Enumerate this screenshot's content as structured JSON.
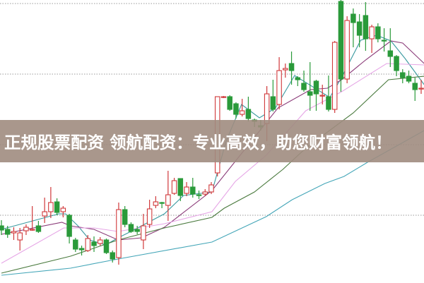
{
  "banner": {
    "text": "正规股票配资 领航配资：专业高效，助您财富领航！"
  },
  "chart_data": {
    "type": "candlestick",
    "title": "",
    "xlabel": "",
    "ylabel": "",
    "ylim": [
      10,
      50
    ],
    "grid": {
      "horizontal": true,
      "style": "dotted",
      "levels": [
        49.5,
        39.5,
        29.5,
        19.5
      ]
    },
    "colors": {
      "up": "#d0383a",
      "down": "#2a9a3a",
      "grid": "#999999",
      "banner": "#a08c80"
    },
    "candles_ohlc": [
      [
        18.0,
        18.8,
        16.7,
        17.4
      ],
      [
        17.5,
        18.0,
        16.3,
        16.8
      ],
      [
        17.0,
        17.8,
        16.0,
        17.2
      ],
      [
        16.0,
        17.7,
        14.5,
        17.0
      ],
      [
        17.3,
        18.2,
        16.7,
        17.8
      ],
      [
        17.4,
        20.8,
        17.3,
        17.5
      ],
      [
        18.0,
        18.7,
        17.0,
        17.2
      ],
      [
        19.4,
        22.0,
        18.4,
        20.0
      ],
      [
        20.0,
        23.5,
        19.1,
        21.3
      ],
      [
        21.4,
        21.9,
        19.5,
        19.9
      ],
      [
        20.0,
        20.8,
        19.2,
        20.5
      ],
      [
        19.5,
        19.7,
        15.5,
        16.5
      ],
      [
        16.0,
        16.3,
        14.3,
        14.7
      ],
      [
        14.8,
        15.2,
        13.8,
        14.6
      ],
      [
        14.5,
        16.7,
        14.3,
        16.2
      ],
      [
        15.7,
        16.5,
        14.3,
        15.2
      ],
      [
        15.5,
        16.4,
        15.2,
        16.0
      ],
      [
        16.0,
        16.2,
        14.0,
        14.2
      ],
      [
        14.2,
        14.5,
        12.8,
        13.3
      ],
      [
        13.5,
        21.3,
        12.5,
        20.3
      ],
      [
        20.3,
        20.8,
        17.8,
        18.2
      ],
      [
        18.2,
        18.5,
        17.0,
        17.2
      ],
      [
        17.5,
        18.0,
        16.8,
        17.2
      ],
      [
        16.0,
        19.7,
        14.7,
        18.0
      ],
      [
        18.2,
        21.7,
        17.7,
        20.4
      ],
      [
        20.9,
        22.2,
        20.5,
        21.4
      ],
      [
        21.3,
        21.4,
        20.5,
        21.2
      ],
      [
        20.9,
        25.8,
        18.7,
        22.4
      ],
      [
        22.6,
        24.8,
        22.4,
        24.4
      ],
      [
        24.7,
        24.7,
        21.5,
        22.3
      ],
      [
        22.6,
        24.2,
        22.2,
        23.5
      ],
      [
        23.5,
        24.8,
        22.0,
        22.5
      ],
      [
        22.4,
        23.0,
        21.8,
        22.3
      ],
      [
        22.5,
        23.2,
        22.2,
        22.8
      ],
      [
        22.8,
        24.2,
        22.5,
        23.8
      ],
      [
        25.5,
        36.3,
        25.0,
        36.3
      ],
      [
        36.2,
        36.4,
        36.1,
        36.3
      ],
      [
        36.3,
        36.5,
        34.3,
        34.5
      ],
      [
        35.3,
        35.5,
        33.2,
        33.8
      ],
      [
        33.8,
        36.0,
        33.5,
        34.3
      ],
      [
        34.5,
        36.3,
        32.8,
        33.2
      ],
      [
        33.0,
        33.2,
        32.0,
        32.8
      ],
      [
        32.2,
        33.0,
        31.5,
        32.0
      ],
      [
        32.5,
        37.8,
        30.0,
        36.7
      ],
      [
        36.3,
        38.7,
        34.2,
        34.5
      ],
      [
        35.2,
        41.9,
        34.5,
        40.0
      ],
      [
        40.1,
        41.0,
        39.0,
        40.3
      ],
      [
        41.0,
        42.7,
        38.0,
        40.0
      ],
      [
        39.0,
        39.2,
        37.8,
        38.7
      ],
      [
        38.2,
        40.0,
        37.0,
        37.3
      ],
      [
        37.0,
        41.2,
        34.3,
        36.5
      ],
      [
        38.5,
        38.7,
        34.3,
        36.7
      ],
      [
        36.5,
        38.0,
        35.2,
        36.5
      ],
      [
        36.3,
        39.3,
        34.2,
        34.5
      ],
      [
        34.5,
        44.2,
        34.0,
        44.0
      ],
      [
        49.8,
        50.0,
        37.0,
        38.8
      ],
      [
        38.8,
        47.7,
        38.2,
        47.1
      ],
      [
        48.0,
        48.8,
        43.3,
        46.8
      ],
      [
        46.9,
        48.0,
        43.3,
        45.0
      ],
      [
        47.8,
        49.7,
        42.8,
        44.5
      ],
      [
        44.5,
        46.5,
        42.5,
        46.2
      ],
      [
        46.2,
        46.7,
        44.0,
        44.5
      ],
      [
        44.3,
        46.0,
        42.7,
        44.2
      ],
      [
        42.8,
        46.0,
        40.5,
        42.0
      ],
      [
        42.0,
        42.2,
        39.2,
        40.0
      ],
      [
        39.7,
        40.2,
        38.2,
        39.0
      ],
      [
        39.2,
        40.0,
        38.2,
        38.5
      ],
      [
        38.2,
        39.0,
        35.7,
        37.3
      ],
      [
        37.4,
        38.7,
        36.7,
        37.5
      ]
    ],
    "moving_averages": [
      {
        "color": "#3a9aa0",
        "points": [
          [
            0,
            17.5
          ],
          [
            9.3,
            19.7
          ],
          [
            10.4,
            19.7
          ],
          [
            12.4,
            18.0
          ],
          [
            14.3,
            16.0
          ],
          [
            16.9,
            15.3
          ],
          [
            18.9,
            16.3
          ],
          [
            21.2,
            17.3
          ],
          [
            26.4,
            19.7
          ],
          [
            29.5,
            22.3
          ],
          [
            34.1,
            22.8
          ],
          [
            36.4,
            30.0
          ],
          [
            38.9,
            35.2
          ],
          [
            41.8,
            33.3
          ],
          [
            44.4,
            34.7
          ],
          [
            47.5,
            39.3
          ],
          [
            53.2,
            36.2
          ],
          [
            55.1,
            39.0
          ],
          [
            58.2,
            44.3
          ],
          [
            60.8,
            45.0
          ],
          [
            63.1,
            44.2
          ],
          [
            65.4,
            41.7
          ],
          [
            68.5,
            38.0
          ]
        ]
      },
      {
        "color": "#8a3a78",
        "points": [
          [
            0,
            16.8
          ],
          [
            9.8,
            18.5
          ],
          [
            11.2,
            18.0
          ],
          [
            15.0,
            17.5
          ],
          [
            18.9,
            16.0
          ],
          [
            22.7,
            16.3
          ],
          [
            26.4,
            17.8
          ],
          [
            34.1,
            23.0
          ],
          [
            44.8,
            34.7
          ],
          [
            50.1,
            37.3
          ],
          [
            52.8,
            37.5
          ],
          [
            55.1,
            38.7
          ],
          [
            59.0,
            41.5
          ],
          [
            63.1,
            44.2
          ],
          [
            65.0,
            43.9
          ],
          [
            68.5,
            41.0
          ]
        ]
      },
      {
        "color": "#e6a6e6",
        "points": [
          [
            0,
            12.7
          ],
          [
            10.1,
            17.7
          ],
          [
            15.0,
            17.7
          ],
          [
            18.9,
            17.2
          ],
          [
            26.4,
            18.3
          ],
          [
            34.1,
            20.0
          ],
          [
            37.9,
            24.3
          ],
          [
            42.9,
            28.0
          ],
          [
            49.3,
            34.3
          ],
          [
            55.1,
            37.0
          ],
          [
            62.4,
            41.0
          ],
          [
            68.5,
            40.8
          ]
        ]
      },
      {
        "color": "#4a7a3e",
        "points": [
          [
            0,
            11.3
          ],
          [
            11.2,
            13.7
          ],
          [
            18.9,
            16.0
          ],
          [
            26.4,
            17.7
          ],
          [
            34.1,
            19.2
          ],
          [
            36.1,
            20.5
          ],
          [
            41.0,
            22.8
          ],
          [
            45.6,
            26.0
          ],
          [
            49.3,
            29.0
          ],
          [
            57.0,
            34.0
          ],
          [
            62.7,
            38.7
          ],
          [
            68.5,
            39.2
          ]
        ]
      },
      {
        "color": "#44a6b8",
        "points": [
          [
            0,
            11.0
          ],
          [
            11.2,
            12.0
          ],
          [
            18.9,
            13.3
          ],
          [
            34.1,
            15.7
          ],
          [
            42.9,
            19.3
          ],
          [
            47.1,
            21.7
          ],
          [
            52.4,
            24.0
          ],
          [
            55.5,
            25.0
          ],
          [
            59.3,
            27.0
          ],
          [
            68.5,
            31.5
          ]
        ]
      }
    ]
  }
}
